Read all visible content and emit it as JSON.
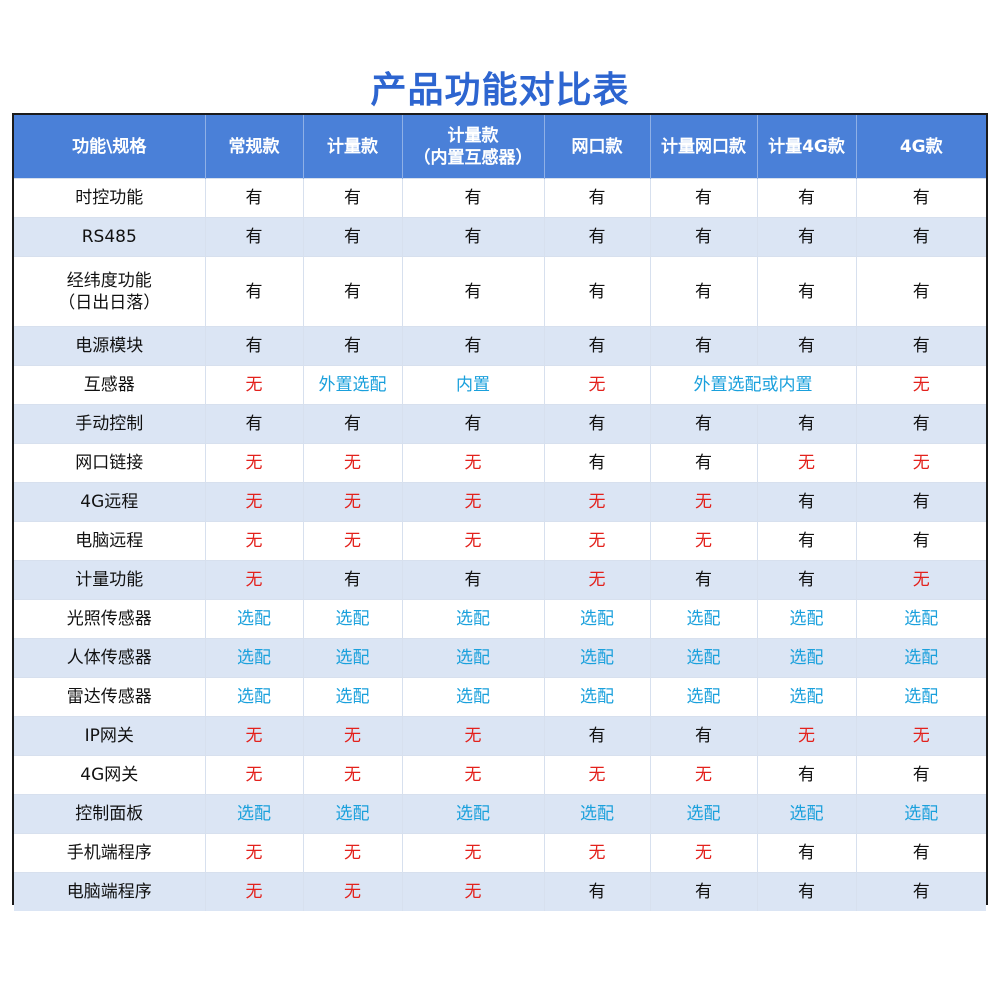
{
  "title": "产品功能对比表",
  "colors": {
    "title": "#2d65d0",
    "header_bg": "#4a80d8",
    "row_alt_bg": "#dbe5f4",
    "yes": "#111111",
    "no": "#e3211c",
    "optional": "#1aa0dc"
  },
  "table": {
    "headers": [
      "功能\\规格",
      "常规款",
      "计量款",
      "计量款\n（内置互感器）",
      "网口款",
      "计量网口款",
      "计量4G款",
      "4G款"
    ],
    "rows": [
      {
        "feature": "时控功能",
        "cells": [
          {
            "v": "有"
          },
          {
            "v": "有"
          },
          {
            "v": "有"
          },
          {
            "v": "有"
          },
          {
            "v": "有"
          },
          {
            "v": "有"
          },
          {
            "v": "有"
          }
        ]
      },
      {
        "feature": "RS485",
        "cells": [
          {
            "v": "有"
          },
          {
            "v": "有"
          },
          {
            "v": "有"
          },
          {
            "v": "有"
          },
          {
            "v": "有"
          },
          {
            "v": "有"
          },
          {
            "v": "有"
          }
        ]
      },
      {
        "feature": "经纬度功能\n（日出日落）",
        "tall": true,
        "cells": [
          {
            "v": "有"
          },
          {
            "v": "有"
          },
          {
            "v": "有"
          },
          {
            "v": "有"
          },
          {
            "v": "有"
          },
          {
            "v": "有"
          },
          {
            "v": "有"
          }
        ]
      },
      {
        "feature": "电源模块",
        "cells": [
          {
            "v": "有"
          },
          {
            "v": "有"
          },
          {
            "v": "有"
          },
          {
            "v": "有"
          },
          {
            "v": "有"
          },
          {
            "v": "有"
          },
          {
            "v": "有"
          }
        ]
      },
      {
        "feature": "互感器",
        "cells": [
          {
            "v": "无"
          },
          {
            "v": "外置选配"
          },
          {
            "v": "内置"
          },
          {
            "v": "无"
          },
          {
            "v": "外置选配或内置",
            "span": 2
          },
          {
            "v": "无"
          }
        ]
      },
      {
        "feature": "手动控制",
        "cells": [
          {
            "v": "有"
          },
          {
            "v": "有"
          },
          {
            "v": "有"
          },
          {
            "v": "有"
          },
          {
            "v": "有"
          },
          {
            "v": "有"
          },
          {
            "v": "有"
          }
        ]
      },
      {
        "feature": "网口链接",
        "cells": [
          {
            "v": "无"
          },
          {
            "v": "无"
          },
          {
            "v": "无"
          },
          {
            "v": "有"
          },
          {
            "v": "有"
          },
          {
            "v": "无"
          },
          {
            "v": "无"
          }
        ]
      },
      {
        "feature": "4G远程",
        "cells": [
          {
            "v": "无"
          },
          {
            "v": "无"
          },
          {
            "v": "无"
          },
          {
            "v": "无"
          },
          {
            "v": "无"
          },
          {
            "v": "有"
          },
          {
            "v": "有"
          }
        ]
      },
      {
        "feature": "电脑远程",
        "cells": [
          {
            "v": "无"
          },
          {
            "v": "无"
          },
          {
            "v": "无"
          },
          {
            "v": "无"
          },
          {
            "v": "无"
          },
          {
            "v": "有"
          },
          {
            "v": "有"
          }
        ]
      },
      {
        "feature": "计量功能",
        "cells": [
          {
            "v": "无"
          },
          {
            "v": "有"
          },
          {
            "v": "有"
          },
          {
            "v": "无"
          },
          {
            "v": "有"
          },
          {
            "v": "有"
          },
          {
            "v": "无"
          }
        ]
      },
      {
        "feature": "光照传感器",
        "cells": [
          {
            "v": "选配"
          },
          {
            "v": "选配"
          },
          {
            "v": "选配"
          },
          {
            "v": "选配"
          },
          {
            "v": "选配"
          },
          {
            "v": "选配"
          },
          {
            "v": "选配"
          }
        ]
      },
      {
        "feature": "人体传感器",
        "cells": [
          {
            "v": "选配"
          },
          {
            "v": "选配"
          },
          {
            "v": "选配"
          },
          {
            "v": "选配"
          },
          {
            "v": "选配"
          },
          {
            "v": "选配"
          },
          {
            "v": "选配"
          }
        ]
      },
      {
        "feature": "雷达传感器",
        "cells": [
          {
            "v": "选配"
          },
          {
            "v": "选配"
          },
          {
            "v": "选配"
          },
          {
            "v": "选配"
          },
          {
            "v": "选配"
          },
          {
            "v": "选配"
          },
          {
            "v": "选配"
          }
        ]
      },
      {
        "feature": "IP网关",
        "cells": [
          {
            "v": "无"
          },
          {
            "v": "无"
          },
          {
            "v": "无"
          },
          {
            "v": "有"
          },
          {
            "v": "有"
          },
          {
            "v": "无"
          },
          {
            "v": "无"
          }
        ]
      },
      {
        "feature": "4G网关",
        "cells": [
          {
            "v": "无"
          },
          {
            "v": "无"
          },
          {
            "v": "无"
          },
          {
            "v": "无"
          },
          {
            "v": "无"
          },
          {
            "v": "有"
          },
          {
            "v": "有"
          }
        ]
      },
      {
        "feature": "控制面板",
        "cells": [
          {
            "v": "选配"
          },
          {
            "v": "选配"
          },
          {
            "v": "选配"
          },
          {
            "v": "选配"
          },
          {
            "v": "选配"
          },
          {
            "v": "选配"
          },
          {
            "v": "选配"
          }
        ]
      },
      {
        "feature": "手机端程序",
        "cells": [
          {
            "v": "无"
          },
          {
            "v": "无"
          },
          {
            "v": "无"
          },
          {
            "v": "无"
          },
          {
            "v": "无"
          },
          {
            "v": "有"
          },
          {
            "v": "有"
          }
        ]
      },
      {
        "feature": "电脑端程序",
        "cells": [
          {
            "v": "无"
          },
          {
            "v": "无"
          },
          {
            "v": "无"
          },
          {
            "v": "有"
          },
          {
            "v": "有"
          },
          {
            "v": "有"
          },
          {
            "v": "有"
          }
        ]
      }
    ]
  }
}
